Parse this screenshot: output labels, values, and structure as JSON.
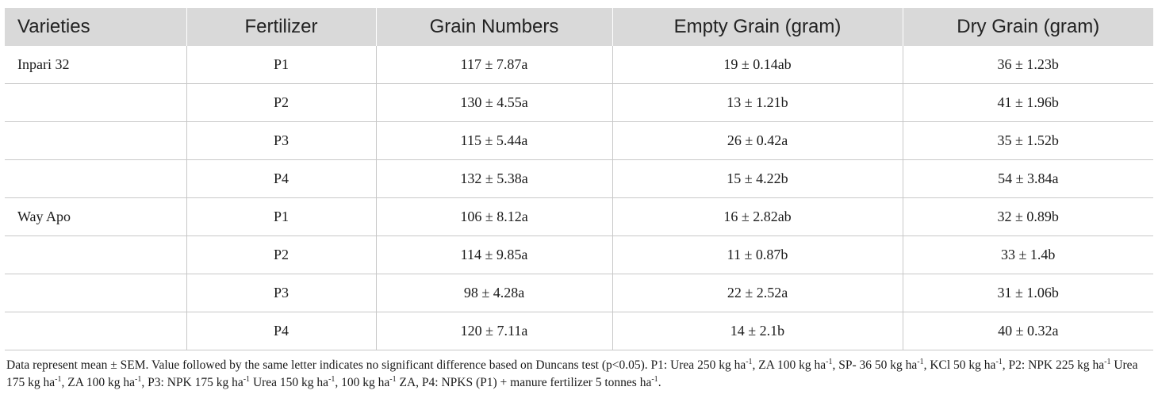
{
  "table": {
    "headers": [
      "Varieties",
      "Fertilizer",
      "Grain Numbers",
      "Empty Grain (gram)",
      "Dry Grain (gram)"
    ],
    "rows": [
      [
        "Inpari 32",
        "P1",
        "117 ± 7.87a",
        "19 ± 0.14ab",
        "36 ± 1.23b"
      ],
      [
        "",
        "P2",
        "130 ± 4.55a",
        "13 ± 1.21b",
        "41 ± 1.96b"
      ],
      [
        "",
        "P3",
        "115 ± 5.44a",
        "26 ± 0.42a",
        "35 ± 1.52b"
      ],
      [
        "",
        "P4",
        "132 ± 5.38a",
        "15 ± 4.22b",
        "54 ± 3.84a"
      ],
      [
        "Way Apo",
        "P1",
        "106 ± 8.12a",
        "16 ± 2.82ab",
        "32 ± 0.89b"
      ],
      [
        "",
        "P2",
        "114 ± 9.85a",
        "11 ± 0.87b",
        "33 ± 1.4b"
      ],
      [
        "",
        "P3",
        "98 ± 4.28a",
        "22 ± 2.52a",
        "31 ± 1.06b"
      ],
      [
        "",
        "P4",
        "120 ± 7.11a",
        "14 ± 2.1b",
        "40 ± 0.32a"
      ]
    ]
  },
  "footnote": {
    "s1": "Data represent mean ± SEM. Value followed by the same letter indicates no significant difference based on Duncans test (p<0.05). P1: Urea 250 kg ha",
    "s2": ", ZA 100 kg ha",
    "s3": ", SP- 36 50 kg ha",
    "s4": ", KCl 50 kg ha",
    "s5": ", P2: NPK 225 kg ha",
    "s6": " Urea 175 kg ha",
    "s7": ", ZA 100 kg ha",
    "s8": ", P3: NPK 175 kg ha",
    "s9": " Urea 150 kg ha",
    "s10": ", 100 kg ha",
    "s11": " ZA, P4: NPKS (P1) + manure fertilizer 5 tonnes ha",
    "s12": ".",
    "exp": "-1"
  },
  "colors": {
    "header_bg": "#d9d9d9",
    "grid": "#c8c8c8"
  }
}
